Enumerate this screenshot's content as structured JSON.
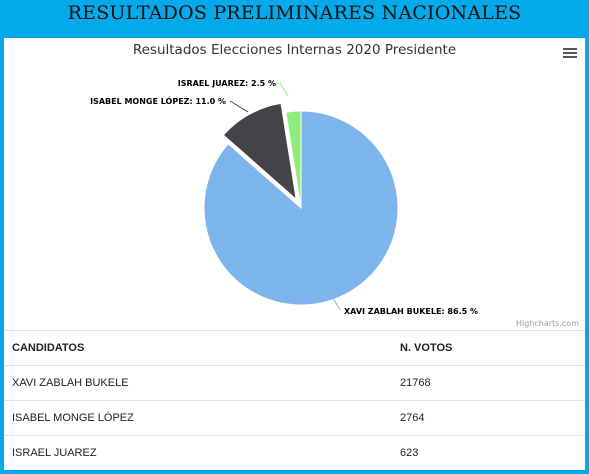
{
  "banner": {
    "title": "RESULTADOS PRELIMINARES NACIONALES"
  },
  "chart_data": {
    "type": "pie",
    "title": "Resultados Elecciones Internas 2020 Presidente",
    "slices": [
      {
        "name": "XAVI ZABLAH BUKELE",
        "value": 86.5,
        "label": "XAVI ZABLAH BUKELE: 86.5 %",
        "color": "#7cb5ec",
        "sliced": false
      },
      {
        "name": "ISABEL MONGE LÓPEZ",
        "value": 11.0,
        "label": "ISABEL MONGE LÓPEZ: 11.0 %",
        "color": "#434348",
        "sliced": true
      },
      {
        "name": "ISRAEL JUAREZ",
        "value": 2.5,
        "label": "ISRAEL JUAREZ: 2.5 %",
        "color": "#90ed7d",
        "sliced": false
      }
    ],
    "credits": "Highcharts.com",
    "menu_icon": "hamburger-icon"
  },
  "table": {
    "headers": [
      "CANDIDATOS",
      "N. VOTOS"
    ],
    "rows": [
      [
        "XAVI ZABLAH BUKELE",
        "21768"
      ],
      [
        "ISABEL MONGE LÓPEZ",
        "2764"
      ],
      [
        "ISRAEL JUAREZ",
        "623"
      ]
    ]
  },
  "colors": {
    "frame": "#03a9e8"
  }
}
